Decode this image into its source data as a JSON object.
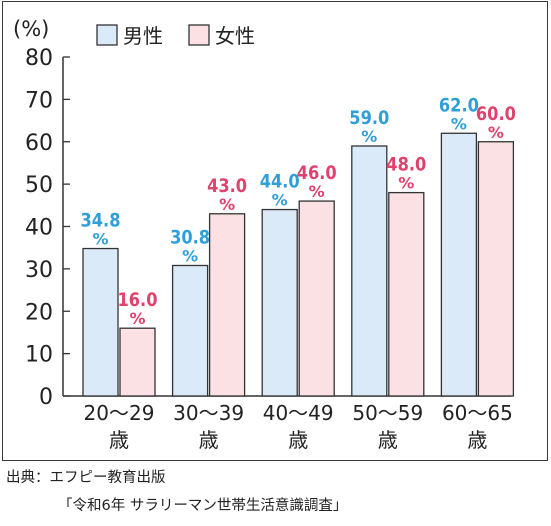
{
  "chart_data": {
    "type": "bar",
    "unit_label": "(%)",
    "categories": [
      "20～29",
      "30～39",
      "40～49",
      "50～59",
      "60～65"
    ],
    "category_suffix": "歳",
    "y_ticks": [
      "0",
      "10",
      "20",
      "30",
      "40",
      "50",
      "60",
      "70",
      "80"
    ],
    "ylim": [
      0,
      80
    ],
    "series": [
      {
        "name": "男性",
        "values": [
          34.8,
          30.8,
          44.0,
          59.0,
          62.0
        ],
        "labels": [
          "34.8",
          "30.8",
          "44.0",
          "59.0",
          "62.0"
        ],
        "fill": "#dbeaf8",
        "stroke": "#333333",
        "label_color": "#2f9fd8"
      },
      {
        "name": "女性",
        "values": [
          16.0,
          43.0,
          46.0,
          48.0,
          60.0
        ],
        "labels": [
          "16.0",
          "43.0",
          "46.0",
          "48.0",
          "60.0"
        ],
        "fill": "#fbe1e4",
        "stroke": "#333333",
        "label_color": "#e0426e"
      }
    ],
    "percent_sign": "%",
    "legend_position": "top-left",
    "grid": false
  },
  "source": {
    "line1": "出典：エフピー教育出版",
    "line2": "「令和6年 サラリーマン世帯生活意識調査」"
  }
}
